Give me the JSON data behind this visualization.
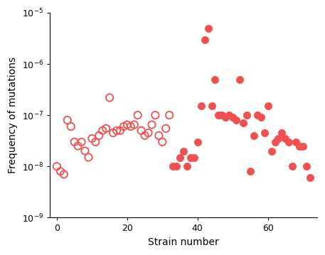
{
  "open_circles": {
    "x": [
      0,
      1,
      2,
      3,
      4,
      5,
      6,
      7,
      8,
      9,
      10,
      11,
      12,
      13,
      14,
      15,
      16,
      17,
      18,
      19,
      20,
      21,
      22,
      23,
      24,
      25,
      26,
      27,
      28,
      29,
      30,
      31,
      32
    ],
    "y": [
      1e-08,
      8e-09,
      7e-09,
      8e-08,
      6e-08,
      3e-08,
      2.5e-08,
      3e-08,
      2e-08,
      1.5e-08,
      3.5e-08,
      3e-08,
      4e-08,
      5e-08,
      5.5e-08,
      2.2e-07,
      4.5e-08,
      5e-08,
      5e-08,
      6e-08,
      6.5e-08,
      6e-08,
      6.5e-08,
      1e-07,
      5e-08,
      4e-08,
      4.5e-08,
      6.5e-08,
      1e-07,
      4e-08,
      3e-08,
      5.5e-08,
      1e-07
    ]
  },
  "filled_circles": {
    "x": [
      33,
      34,
      35,
      36,
      37,
      38,
      39,
      40,
      41,
      42,
      43,
      44,
      45,
      46,
      47,
      48,
      49,
      50,
      51,
      52,
      53,
      54,
      55,
      56,
      57,
      58,
      59,
      60,
      61,
      62,
      63,
      64,
      65,
      66,
      67,
      68,
      69,
      70,
      71,
      72
    ],
    "y": [
      1e-08,
      1e-08,
      1.5e-08,
      2e-08,
      1e-08,
      1.5e-08,
      1.5e-08,
      3e-08,
      1.5e-07,
      3e-06,
      5e-06,
      1.5e-07,
      5e-07,
      1e-07,
      1e-07,
      9e-08,
      1e-07,
      9e-08,
      8e-08,
      5e-07,
      7e-08,
      1e-07,
      8e-09,
      4e-08,
      1e-07,
      9e-08,
      4.5e-08,
      1.5e-07,
      2e-08,
      3e-08,
      3.5e-08,
      4.5e-08,
      3.5e-08,
      3e-08,
      1e-08,
      3e-08,
      2.5e-08,
      2.5e-08,
      1e-08,
      6e-09
    ]
  },
  "color": "#f05050",
  "marker_size": 55,
  "open_linewidth": 1.3,
  "xlabel": "Strain number",
  "ylabel": "Frequency of mutations",
  "ylim_log": [
    -9,
    -5
  ],
  "xlim": [
    -2,
    74
  ],
  "xticks": [
    0,
    20,
    40,
    60
  ],
  "yticks_vals": [
    1e-09,
    1e-08,
    1e-07,
    1e-06,
    1e-05
  ],
  "xlabel_fontsize": 10,
  "ylabel_fontsize": 10,
  "tick_fontsize": 9
}
